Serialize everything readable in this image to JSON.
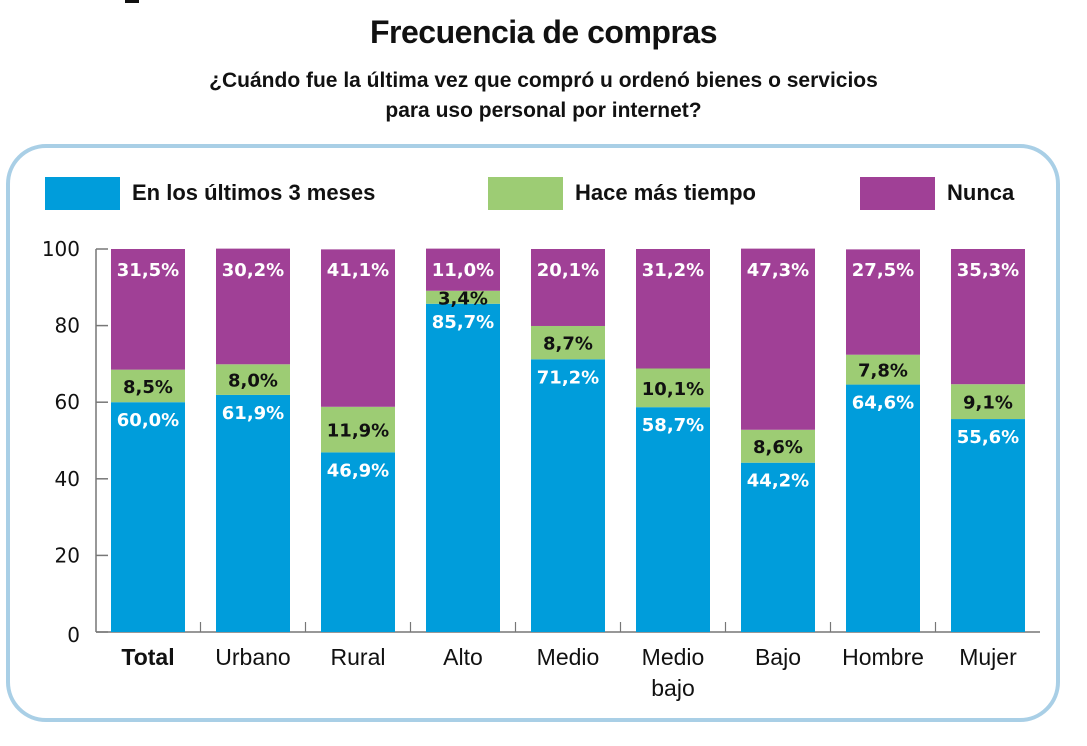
{
  "colors": {
    "recent": "#009ddb",
    "older": "#9dcc74",
    "never": "#a04096",
    "panel_border": "#a9cfe6",
    "axis": "#777777"
  },
  "legend": [
    {
      "key": "recent",
      "label": "En los últimos 3 meses"
    },
    {
      "key": "older",
      "label": "Hace más tiempo"
    },
    {
      "key": "never",
      "label": "Nunca"
    }
  ],
  "chart_data": {
    "type": "bar",
    "stacked": true,
    "title": "Frecuencia de compras",
    "subtitle": [
      "¿Cuándo fue la última vez que compró u ordenó bienes o servicios",
      "para uso personal por internet?"
    ],
    "xlabel": "",
    "ylabel": "",
    "ylim": [
      0,
      100
    ],
    "yticks": [
      0,
      20,
      40,
      60,
      80,
      100
    ],
    "grid": false,
    "legend_position": "top",
    "categories": [
      "Total",
      "Urbano",
      "Rural",
      "Alto",
      "Medio",
      "Medio bajo",
      "Bajo",
      "Hombre",
      "Mujer"
    ],
    "category_bold": [
      true,
      false,
      false,
      false,
      false,
      false,
      false,
      false,
      false
    ],
    "series": [
      {
        "name": "En los últimos 3 meses",
        "key": "recent",
        "values": [
          60.0,
          61.9,
          46.9,
          85.7,
          71.2,
          58.7,
          44.2,
          64.6,
          55.6
        ],
        "labels": [
          "60,0%",
          "61,9%",
          "46,9%",
          "85,7%",
          "71,2%",
          "58,7%",
          "44,2%",
          "64,6%",
          "55,6%"
        ]
      },
      {
        "name": "Hace más tiempo",
        "key": "older",
        "values": [
          8.5,
          8.0,
          11.9,
          3.4,
          8.7,
          10.1,
          8.6,
          7.8,
          9.1
        ],
        "labels": [
          "8,5%",
          "8,0%",
          "11,9%",
          "3,4%",
          "8,7%",
          "10,1%",
          "8,6%",
          "7,8%",
          "9,1%"
        ]
      },
      {
        "name": "Nunca",
        "key": "never",
        "values": [
          31.5,
          30.2,
          41.1,
          11.0,
          20.1,
          31.2,
          47.3,
          27.5,
          35.3
        ],
        "labels": [
          "31,5%",
          "30,2%",
          "41,1%",
          "11,0%",
          "20,1%",
          "31,2%",
          "47,3%",
          "27,5%",
          "35,3%"
        ]
      }
    ]
  }
}
